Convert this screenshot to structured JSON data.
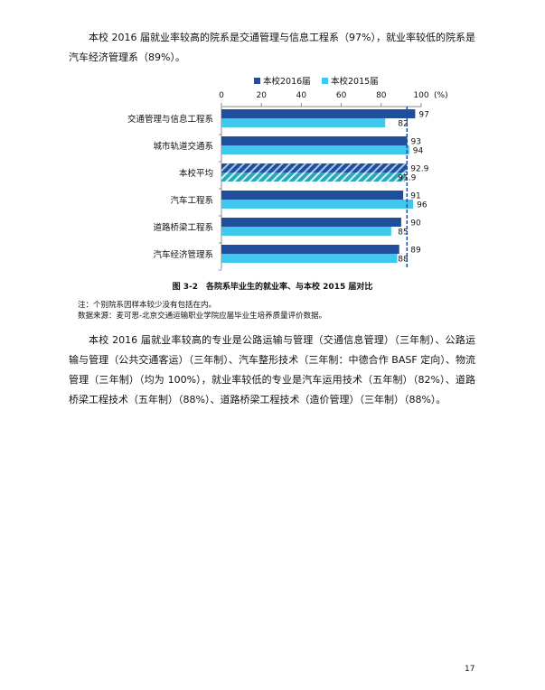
{
  "paragraphs": {
    "p1": "本校 2016 届就业率较高的院系是交通管理与信息工程系（97%），就业率较低的院系是汽车经济管理系（89%）。",
    "p2": "本校 2016 届就业率较高的专业是公路运输与管理（交通信息管理）（三年制）、公路运输与管理（公共交通客运）（三年制）、汽车整形技术（三年制：中德合作 BASF 定向）、物流管理（三年制）（均为 100%），就业率较低的专业是汽车运用技术（五年制）（82%）、道路桥梁工程技术（五年制）（88%）、道路桥梁工程技术（造价管理）（三年制）（88%）。"
  },
  "caption": "图 3-2　各院系毕业生的就业率、与本校 2015 届对比",
  "notes": {
    "note": "注：个别院系因样本较少没有包括在内。",
    "source": "数据来源：麦可思-北京交通运输职业学院应届毕业生培养质量评价数据。"
  },
  "page_number": "17",
  "chart_data": {
    "type": "bar",
    "orientation": "horizontal",
    "categories": [
      "交通管理与信息工程系",
      "城市轨道交通系",
      "本校平均",
      "汽车工程系",
      "道路桥梁工程系",
      "汽车经济管理系"
    ],
    "series": [
      {
        "name": "本校2016届",
        "values": [
          97,
          93,
          92.9,
          91,
          90,
          89
        ],
        "color": "#1f4e9c"
      },
      {
        "name": "本校2015届",
        "values": [
          82,
          94,
          91.9,
          96,
          85,
          88
        ],
        "color": "#3fc8ee"
      }
    ],
    "xlim": [
      0,
      100
    ],
    "xticks": [
      "0",
      "20",
      "40",
      "60",
      "80",
      "100"
    ],
    "xunit": "(%)",
    "reference_line": 92.9,
    "hatched_category": "本校平均",
    "legend": "top"
  }
}
